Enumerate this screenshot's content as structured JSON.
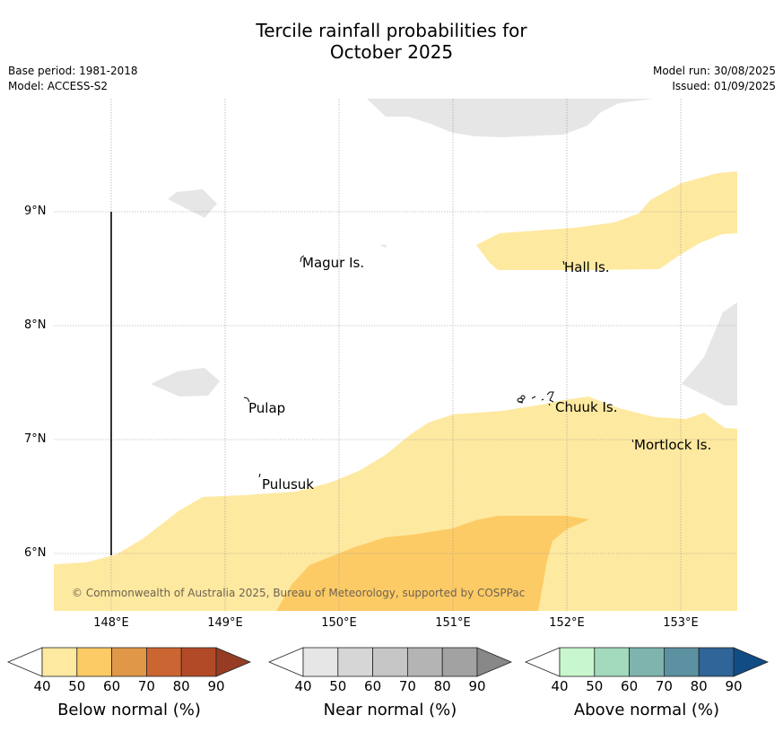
{
  "title_line1": "Tercile rainfall probabilities for",
  "title_line2": "October 2025",
  "meta": {
    "base_period": "Base period: 1981-2018",
    "model": "Model: ACCESS-S2",
    "model_run": "Model run: 30/08/2025",
    "issued": "Issued: 01/09/2025"
  },
  "map": {
    "lon_labels": [
      "148°E",
      "149°E",
      "150°E",
      "151°E",
      "152°E",
      "153°E"
    ],
    "lat_labels": [
      "9°N",
      "8°N",
      "7°N",
      "6°N"
    ],
    "places": {
      "magur": "Magur Is.",
      "hall": "Hall Is.",
      "pulap": "Pulap",
      "chuuk": "Chuuk Is.",
      "mortlock": "Mortlock Is.",
      "pulusuk": "Pulusuk"
    },
    "colors": {
      "below_40": "#fee9a0",
      "below_50": "#fdcb65",
      "near_40": "#e6e6e6"
    }
  },
  "copyright": "© Commonwealth of Australia 2025, Bureau of Meteorology, supported by COSPPac",
  "colorbars": [
    {
      "label": "Below normal (%)",
      "ticks": [
        "40",
        "50",
        "60",
        "70",
        "80",
        "90"
      ],
      "colors": [
        "#fee9a0",
        "#fdcb65",
        "#e19748",
        "#cb6532",
        "#b24a28",
        "#973c24"
      ]
    },
    {
      "label": "Near normal (%)",
      "ticks": [
        "40",
        "50",
        "60",
        "70",
        "80",
        "90"
      ],
      "colors": [
        "#e6e6e6",
        "#d6d6d6",
        "#c6c6c6",
        "#b4b4b4",
        "#a2a2a2",
        "#888888"
      ]
    },
    {
      "label": "Above normal (%)",
      "ticks": [
        "40",
        "50",
        "60",
        "70",
        "80",
        "90"
      ],
      "colors": [
        "#c8f7cd",
        "#a3d9bd",
        "#7eb4ad",
        "#5c91a1",
        "#2f6598",
        "#124c84"
      ]
    }
  ]
}
